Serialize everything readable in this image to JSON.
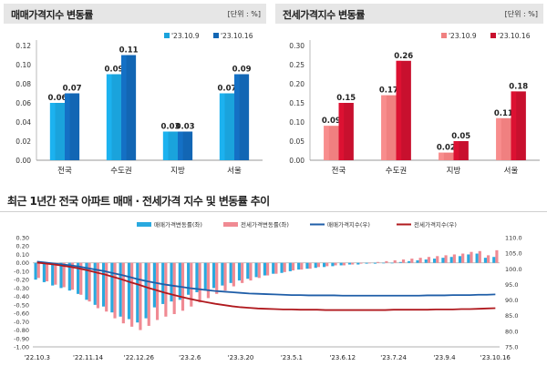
{
  "panels": {
    "sale": {
      "title": "매매가격지수 변동률",
      "unit": "[단위 : %]"
    },
    "jeonse": {
      "title": "전세가격지수 변동률",
      "unit": "[단위 : %]"
    },
    "trend": {
      "title": "최근 1년간 전국 아파트 매매 · 전세가격 지수 및 변동률 추이"
    }
  },
  "colors": {
    "sale_prev": "#1aa3dc",
    "sale_curr": "#1266b4",
    "jeonse_prev": "#f08080",
    "jeonse_curr": "#c8102e",
    "sale_bar": "#29a9df",
    "jeonse_bar": "#f08a93",
    "sale_line": "#1f5ea8",
    "jeonse_line": "#b0191e"
  },
  "chart_data": [
    {
      "type": "bar",
      "categories": [
        "전국",
        "수도권",
        "지방",
        "서울"
      ],
      "series": [
        {
          "name": "'23.10.9",
          "values": [
            0.06,
            0.09,
            0.03,
            0.07
          ]
        },
        {
          "name": "'23.10.16",
          "values": [
            0.07,
            0.11,
            0.03,
            0.09
          ]
        }
      ],
      "ylim": [
        0.0,
        0.12
      ],
      "yticks": [
        "0.12",
        "0.10",
        "0.08",
        "0.06",
        "0.04",
        "0.02",
        "0.00"
      ],
      "grid": false,
      "legend": "top-right"
    },
    {
      "type": "bar",
      "categories": [
        "전국",
        "수도권",
        "지방",
        "서울"
      ],
      "series": [
        {
          "name": "'23.10.9",
          "values": [
            0.09,
            0.17,
            0.02,
            0.11
          ]
        },
        {
          "name": "'23.10.16",
          "values": [
            0.15,
            0.26,
            0.05,
            0.18
          ]
        }
      ],
      "ylim": [
        0.0,
        0.3
      ],
      "yticks": [
        "0.30",
        "0.25",
        "0.20",
        "0.15",
        "0.10",
        "0.05",
        "0.00"
      ],
      "grid": false,
      "legend": "top-right"
    },
    {
      "type": "bar+line",
      "x": [
        "'22.10.3",
        "'22.10.10",
        "'22.10.17",
        "'22.10.24",
        "'22.10.31",
        "'22.11.7",
        "'22.11.14",
        "'22.11.21",
        "'22.11.28",
        "'22.12.5",
        "'22.12.12",
        "'22.12.19",
        "'22.12.26",
        "'23.1.2",
        "'23.1.9",
        "'23.1.16",
        "'23.1.23",
        "'23.1.30",
        "'23.2.6",
        "'23.2.13",
        "'23.2.20",
        "'23.2.27",
        "'23.3.6",
        "'23.3.13",
        "'23.3.20",
        "'23.3.27",
        "'23.4.3",
        "'23.4.10",
        "'23.4.17",
        "'23.4.24",
        "'23.5.1",
        "'23.5.8",
        "'23.5.15",
        "'23.5.22",
        "'23.5.29",
        "'23.6.5",
        "'23.6.12",
        "'23.6.19",
        "'23.6.26",
        "'23.7.3",
        "'23.7.10",
        "'23.7.17",
        "'23.7.24",
        "'23.7.31",
        "'23.8.7",
        "'23.8.14",
        "'23.8.21",
        "'23.8.28",
        "'23.9.4",
        "'23.9.11",
        "'23.9.18",
        "'23.9.25",
        "'23.10.2",
        "'23.10.9",
        "'23.10.16"
      ],
      "xticks": [
        "'22.10.3",
        "'22.11.14",
        "'22.12.26",
        "'23.2.6",
        "'23.3.20",
        "'23.5.1",
        "'23.6.12",
        "'23.7.24",
        "'23.9.4",
        "'23.10.16"
      ],
      "series": [
        {
          "name": "매매가격변동률(좌)",
          "axis": "left",
          "kind": "bar",
          "values": [
            -0.2,
            -0.23,
            -0.27,
            -0.3,
            -0.33,
            -0.37,
            -0.44,
            -0.5,
            -0.52,
            -0.59,
            -0.64,
            -0.67,
            -0.71,
            -0.66,
            -0.53,
            -0.49,
            -0.46,
            -0.44,
            -0.38,
            -0.35,
            -0.33,
            -0.3,
            -0.27,
            -0.24,
            -0.21,
            -0.19,
            -0.17,
            -0.15,
            -0.13,
            -0.12,
            -0.1,
            -0.08,
            -0.07,
            -0.06,
            -0.05,
            -0.04,
            -0.03,
            -0.02,
            -0.02,
            -0.01,
            -0.01,
            0.0,
            0.0,
            0.01,
            0.02,
            0.03,
            0.04,
            0.05,
            0.06,
            0.07,
            0.08,
            0.1,
            0.11,
            0.06,
            0.07
          ]
        },
        {
          "name": "전세가격변동률(좌)",
          "axis": "left",
          "kind": "bar",
          "values": [
            -0.18,
            -0.22,
            -0.26,
            -0.29,
            -0.32,
            -0.38,
            -0.46,
            -0.54,
            -0.58,
            -0.66,
            -0.72,
            -0.76,
            -0.8,
            -0.75,
            -0.68,
            -0.64,
            -0.61,
            -0.57,
            -0.52,
            -0.47,
            -0.42,
            -0.37,
            -0.33,
            -0.28,
            -0.24,
            -0.21,
            -0.18,
            -0.15,
            -0.13,
            -0.11,
            -0.09,
            -0.08,
            -0.07,
            -0.05,
            -0.04,
            -0.03,
            -0.03,
            -0.02,
            -0.01,
            0.0,
            0.01,
            0.02,
            0.03,
            0.04,
            0.05,
            0.06,
            0.07,
            0.08,
            0.09,
            0.1,
            0.11,
            0.13,
            0.14,
            0.09,
            0.15
          ]
        },
        {
          "name": "매매가격지수(우)",
          "axis": "right",
          "kind": "line",
          "values": [
            102.3,
            102.0,
            101.7,
            101.4,
            101.1,
            100.7,
            100.2,
            99.7,
            99.2,
            98.6,
            98.0,
            97.3,
            96.6,
            96.0,
            95.5,
            95.0,
            94.6,
            94.2,
            93.8,
            93.5,
            93.2,
            92.9,
            92.7,
            92.5,
            92.3,
            92.1,
            92.0,
            91.9,
            91.8,
            91.7,
            91.6,
            91.6,
            91.5,
            91.5,
            91.5,
            91.5,
            91.4,
            91.4,
            91.4,
            91.4,
            91.4,
            91.4,
            91.4,
            91.4,
            91.4,
            91.4,
            91.5,
            91.5,
            91.5,
            91.6,
            91.6,
            91.6,
            91.7,
            91.7,
            91.8
          ]
        },
        {
          "name": "전세가격지수(우)",
          "axis": "right",
          "kind": "line",
          "values": [
            102.0,
            101.7,
            101.4,
            101.0,
            100.6,
            100.1,
            99.5,
            98.8,
            98.2,
            97.4,
            96.6,
            95.7,
            94.9,
            94.0,
            93.2,
            92.4,
            91.7,
            91.0,
            90.4,
            89.8,
            89.3,
            88.8,
            88.4,
            88.0,
            87.7,
            87.5,
            87.3,
            87.2,
            87.1,
            87.0,
            87.0,
            86.9,
            86.9,
            86.9,
            86.8,
            86.8,
            86.8,
            86.8,
            86.8,
            86.8,
            86.8,
            86.8,
            86.9,
            86.9,
            86.9,
            86.9,
            86.9,
            87.0,
            87.0,
            87.0,
            87.1,
            87.1,
            87.2,
            87.3,
            87.4
          ]
        }
      ],
      "ylim_left": [
        -1.0,
        0.3
      ],
      "yticks_left": [
        "0.30",
        "0.20",
        "0.10",
        "0.00",
        "-0.10",
        "-0.20",
        "-0.30",
        "-0.40",
        "-0.50",
        "-0.60",
        "-0.70",
        "-0.80",
        "-0.90",
        "-1.00"
      ],
      "ylim_right": [
        75.0,
        110.0
      ],
      "yticks_right": [
        "110.0",
        "105.0",
        "100.0",
        "95.0",
        "90.0",
        "85.0",
        "80.0",
        "75.0"
      ],
      "legend": "top"
    }
  ]
}
